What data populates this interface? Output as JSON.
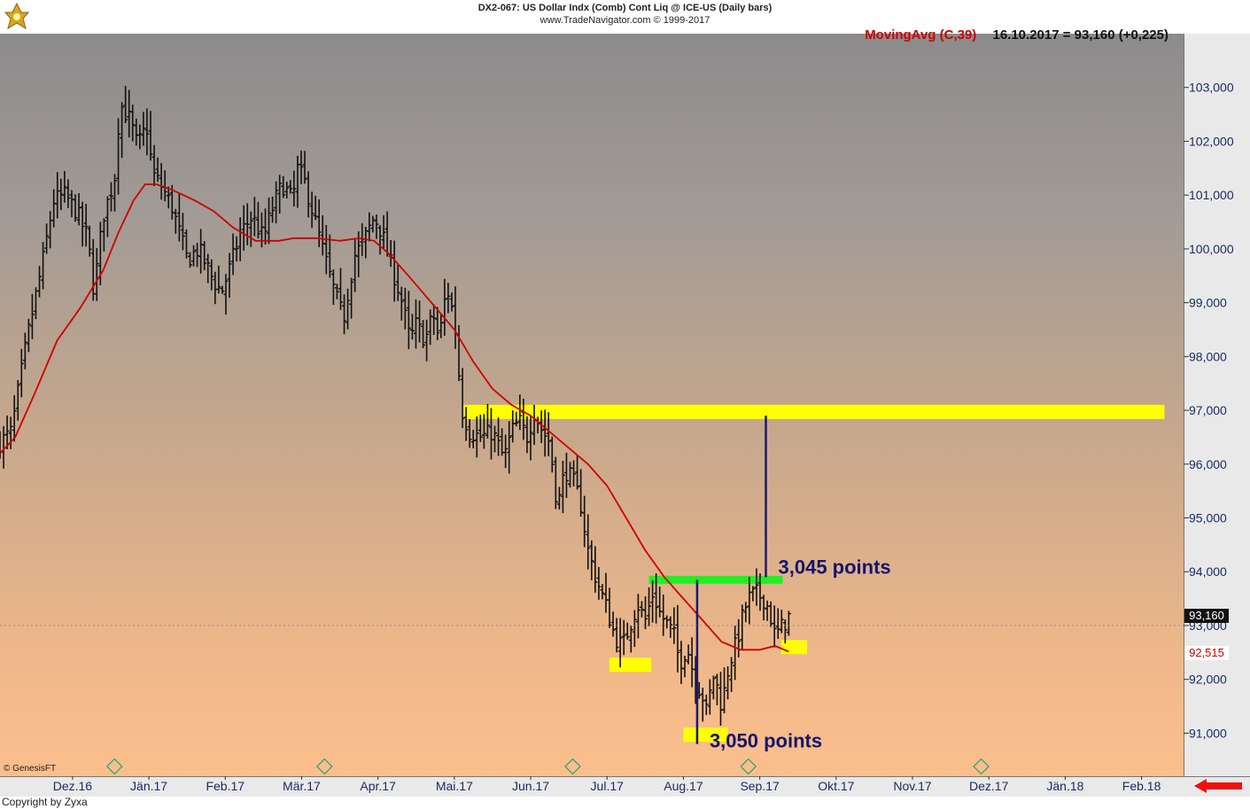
{
  "header": {
    "line1": "DX2-067:  US Dollar Indx (Comb) Cont Liq @ ICE-US  (Daily bars)",
    "line2": "www.TradeNavigator.com © 1999-2017"
  },
  "indicator": {
    "name": "MovingAvg (C,39)",
    "value": "16.10.2017 = 93,160 (+0,225)"
  },
  "footer": {
    "copyright": "Copyright by Zyxa",
    "genesis": "© GenesisFT"
  },
  "price_tags": {
    "last": "93,160",
    "ma": "92,515"
  },
  "colors": {
    "bars": "#111111",
    "moving_average": "#cc0000",
    "highlight_yellow": "#ffff00",
    "resistance_green": "#22ee22",
    "measure_lines": "#1a1a6e",
    "annotation_text": "#14146e",
    "last_tag_bg": "#111111",
    "ma_tag_bg": "#ffffff"
  },
  "chart_data": {
    "type": "ohlc",
    "title": "DX2-067:  US Dollar Indx (Comb) Cont Liq @ ICE-US  (Daily bars)",
    "x_tick_labels": [
      "Dez.16",
      "Jän.17",
      "Feb.17",
      "Mär.17",
      "Apr.17",
      "Mai.17",
      "Jun.17",
      "Jul.17",
      "Aug.17",
      "Sep.17",
      "Okt.17",
      "Nov.17",
      "Dez.17",
      "Jän.18",
      "Feb.18"
    ],
    "y_tick_labels": [
      "103,000",
      "102,000",
      "101,000",
      "100,000",
      "99,000",
      "98,000",
      "97,000",
      "96,000",
      "95,000",
      "94,000",
      "93,000",
      "92,000",
      "91,000"
    ],
    "y_ticks": [
      103,
      102,
      101,
      100,
      99,
      98,
      97,
      96,
      95,
      94,
      93,
      92,
      91
    ],
    "ylim": [
      90.2,
      104.0
    ],
    "x_range_months": [
      -0.95,
      14.55
    ],
    "price_path": [
      [
        -0.95,
        96.4
      ],
      [
        -0.8,
        96.6
      ],
      [
        -0.6,
        98.3
      ],
      [
        -0.4,
        99.7
      ],
      [
        -0.25,
        100.9
      ],
      [
        -0.1,
        101.0
      ],
      [
        0.05,
        100.7
      ],
      [
        0.2,
        100.2
      ],
      [
        0.28,
        99.2
      ],
      [
        0.4,
        100.6
      ],
      [
        0.55,
        101.3
      ],
      [
        0.62,
        102.7
      ],
      [
        0.75,
        102.4
      ],
      [
        0.85,
        101.9
      ],
      [
        0.97,
        102.3
      ],
      [
        1.05,
        101.4
      ],
      [
        1.15,
        101.2
      ],
      [
        1.3,
        100.8
      ],
      [
        1.5,
        99.8
      ],
      [
        1.65,
        100.0
      ],
      [
        1.85,
        99.4
      ],
      [
        1.95,
        99.2
      ],
      [
        2.05,
        99.6
      ],
      [
        2.2,
        100.3
      ],
      [
        2.35,
        100.6
      ],
      [
        2.5,
        100.2
      ],
      [
        2.65,
        100.9
      ],
      [
        2.75,
        101.2
      ],
      [
        2.88,
        100.9
      ],
      [
        2.95,
        101.5
      ],
      [
        3.05,
        101.2
      ],
      [
        3.2,
        100.4
      ],
      [
        3.35,
        99.6
      ],
      [
        3.45,
        99.1
      ],
      [
        3.55,
        98.7
      ],
      [
        3.62,
        99.3
      ],
      [
        3.7,
        99.9
      ],
      [
        3.8,
        100.1
      ],
      [
        3.95,
        100.6
      ],
      [
        4.05,
        100.3
      ],
      [
        4.15,
        99.8
      ],
      [
        4.3,
        99.1
      ],
      [
        4.42,
        98.3
      ],
      [
        4.5,
        98.6
      ],
      [
        4.62,
        98.3
      ],
      [
        4.72,
        98.8
      ],
      [
        4.8,
        98.3
      ],
      [
        4.9,
        99.3
      ],
      [
        5.0,
        98.7
      ],
      [
        5.1,
        97.0
      ],
      [
        5.2,
        96.6
      ],
      [
        5.35,
        96.5
      ],
      [
        5.5,
        96.6
      ],
      [
        5.65,
        96.1
      ],
      [
        5.75,
        96.6
      ],
      [
        5.85,
        96.8
      ],
      [
        5.95,
        96.5
      ],
      [
        6.05,
        97.0
      ],
      [
        6.12,
        96.7
      ],
      [
        6.25,
        96.4
      ],
      [
        6.35,
        95.2
      ],
      [
        6.45,
        95.9
      ],
      [
        6.55,
        95.7
      ],
      [
        6.65,
        95.3
      ],
      [
        6.75,
        94.4
      ],
      [
        6.85,
        93.9
      ],
      [
        7.0,
        93.3
      ],
      [
        7.1,
        92.8
      ],
      [
        7.2,
        92.6
      ],
      [
        7.3,
        93.0
      ],
      [
        7.4,
        93.4
      ],
      [
        7.5,
        93.1
      ],
      [
        7.6,
        93.6
      ],
      [
        7.7,
        93.2
      ],
      [
        7.8,
        93.0
      ],
      [
        7.88,
        92.8
      ],
      [
        7.95,
        92.3
      ],
      [
        8.05,
        92.6
      ],
      [
        8.15,
        92.0
      ],
      [
        8.25,
        91.7
      ],
      [
        8.3,
        91.4
      ],
      [
        8.4,
        92.1
      ],
      [
        8.5,
        91.5
      ],
      [
        8.6,
        92.3
      ],
      [
        8.7,
        92.7
      ],
      [
        8.78,
        93.2
      ],
      [
        8.85,
        93.5
      ],
      [
        8.95,
        93.6
      ],
      [
        9.05,
        93.5
      ],
      [
        9.12,
        93.3
      ],
      [
        9.2,
        92.8
      ],
      [
        9.3,
        93.0
      ],
      [
        9.38,
        93.16
      ]
    ],
    "moving_average": {
      "name": "MovingAvg (C,39)",
      "points": [
        [
          -0.95,
          96.2
        ],
        [
          -0.75,
          96.5
        ],
        [
          -0.5,
          97.3
        ],
        [
          -0.2,
          98.3
        ],
        [
          0.1,
          98.9
        ],
        [
          0.4,
          99.6
        ],
        [
          0.6,
          100.3
        ],
        [
          0.8,
          100.9
        ],
        [
          0.95,
          101.2
        ],
        [
          1.1,
          101.2
        ],
        [
          1.3,
          101.1
        ],
        [
          1.6,
          100.9
        ],
        [
          1.85,
          100.7
        ],
        [
          2.1,
          100.4
        ],
        [
          2.4,
          100.15
        ],
        [
          2.7,
          100.15
        ],
        [
          2.9,
          100.2
        ],
        [
          3.2,
          100.2
        ],
        [
          3.5,
          100.15
        ],
        [
          3.75,
          100.2
        ],
        [
          3.95,
          100.15
        ],
        [
          4.15,
          99.9
        ],
        [
          4.4,
          99.5
        ],
        [
          4.7,
          99.0
        ],
        [
          5.0,
          98.5
        ],
        [
          5.25,
          97.9
        ],
        [
          5.5,
          97.4
        ],
        [
          5.75,
          97.1
        ],
        [
          6.0,
          96.9
        ],
        [
          6.25,
          96.6
        ],
        [
          6.5,
          96.3
        ],
        [
          6.75,
          96.0
        ],
        [
          7.0,
          95.6
        ],
        [
          7.25,
          95.0
        ],
        [
          7.5,
          94.4
        ],
        [
          7.75,
          93.9
        ],
        [
          8.0,
          93.5
        ],
        [
          8.25,
          93.1
        ],
        [
          8.5,
          92.7
        ],
        [
          8.75,
          92.55
        ],
        [
          9.0,
          92.55
        ],
        [
          9.2,
          92.62
        ],
        [
          9.38,
          92.515
        ]
      ]
    },
    "annotations": [
      {
        "label": "3,045 points",
        "text": "3,045 points",
        "x": 9.08,
        "y_from": 93.9,
        "y_to": 96.9
      },
      {
        "label": "3,050 points",
        "text": "3,050 points",
        "x": 8.18,
        "y_from": 90.8,
        "y_to": 93.85
      }
    ],
    "zones": [
      {
        "name": "resistance-97",
        "color": "yellow",
        "x_from": 5.12,
        "x_to": 14.3,
        "y": 96.97
      },
      {
        "name": "neckline-93.85",
        "color": "green",
        "x_from": 7.55,
        "x_to": 9.3,
        "y": 93.85
      },
      {
        "name": "support-aug",
        "color": "yellow",
        "x_from": 7.03,
        "x_to": 7.58,
        "y": 92.27
      },
      {
        "name": "support-sep",
        "color": "yellow",
        "x_from": 8.0,
        "x_to": 8.58,
        "y": 90.97
      },
      {
        "name": "support-oct",
        "color": "yellow",
        "x_from": 9.28,
        "x_to": 9.62,
        "y": 92.6
      }
    ],
    "legend": "top-right",
    "grid": false
  }
}
